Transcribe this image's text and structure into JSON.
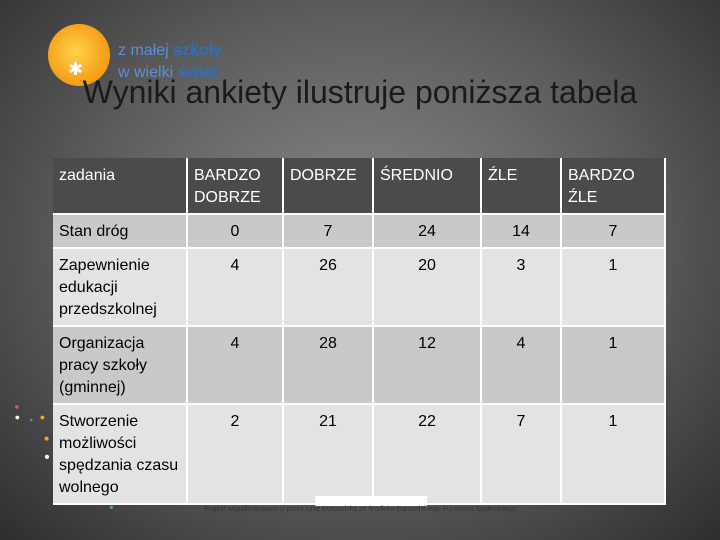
{
  "logo": {
    "line1_prefix": "z małej ",
    "line1_bold": "szkoły",
    "line2_prefix": "w wielki ",
    "line2_bold": "świat",
    "sun_color": "#f7a21b",
    "text_color": "#2f6fc0"
  },
  "title": "Wyniki ankiety ilustruje poniższa tabela",
  "table": {
    "headers": [
      "zadania",
      "BARDZO DOBRZE",
      "DOBRZE",
      "ŚREDNIO",
      "ŹLE",
      "BARDZO ŹLE"
    ],
    "rows": [
      {
        "label": "Stan dróg",
        "values": [
          "0",
          "7",
          "24",
          "14",
          "7"
        ]
      },
      {
        "label": "Zapewnienie edukacji przedszkolnej",
        "values": [
          "4",
          "26",
          "20",
          "3",
          "1"
        ]
      },
      {
        "label": "Organizacja pracy szkoły (gminnej)",
        "values": [
          "4",
          "28",
          "12",
          "4",
          "1"
        ]
      },
      {
        "label": "Stworzenie możliwości spędzania czasu wolnego",
        "values": [
          "2",
          "21",
          "22",
          "7",
          "1"
        ]
      }
    ],
    "header_bg": "#4b4b4b",
    "row_bg": [
      "#c9c9c9",
      "#e3e3e3"
    ]
  },
  "footer": "Projekt współfinansowany przez Unię Europejską ze środków Europejskiego Funduszu Społecznego",
  "background_colors": [
    "#8a8a8a",
    "#2e2e2e"
  ]
}
